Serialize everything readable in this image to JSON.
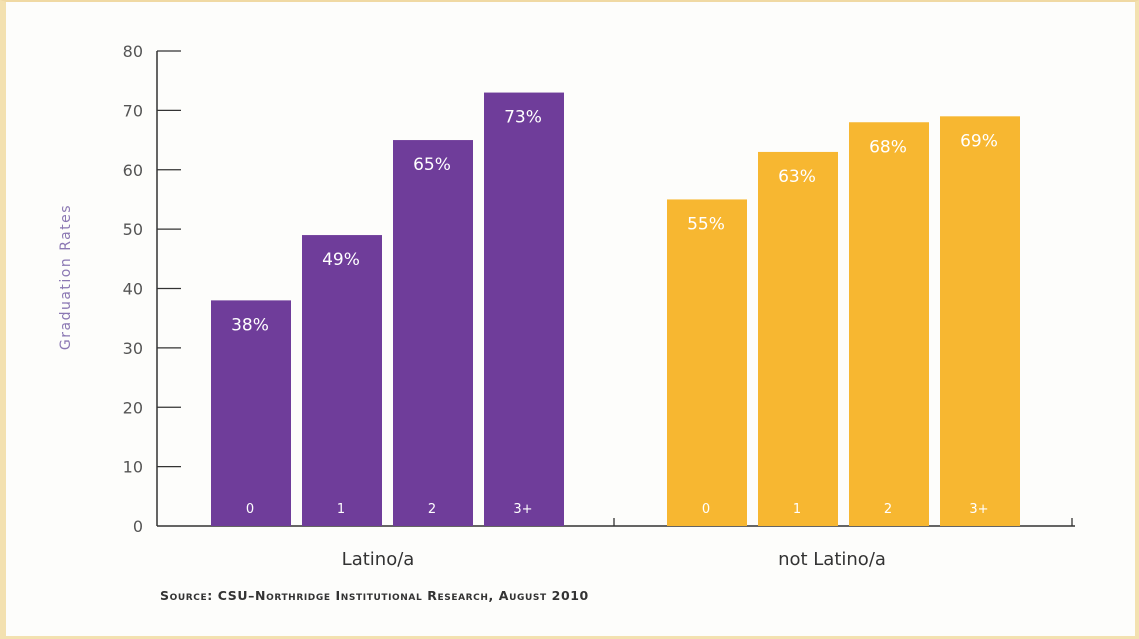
{
  "chart_data": {
    "type": "bar",
    "ylabel": "Graduation Rates",
    "ylim": [
      0,
      80
    ],
    "yticks": [
      "0",
      "10",
      "20",
      "30",
      "40",
      "50",
      "60",
      "70",
      "80"
    ],
    "groups": [
      {
        "name": "Latino/a",
        "color": "#6f3d9a",
        "categories": [
          "0",
          "1",
          "2",
          "3+"
        ],
        "values": [
          38,
          49,
          65,
          73
        ],
        "labels": [
          "38%",
          "49%",
          "65%",
          "73%"
        ]
      },
      {
        "name": "not Latino/a",
        "color": "#f7b731",
        "categories": [
          "0",
          "1",
          "2",
          "3+"
        ],
        "values": [
          55,
          63,
          68,
          69
        ],
        "labels": [
          "55%",
          "63%",
          "68%",
          "69%"
        ]
      }
    ],
    "grid": false,
    "legend": "none"
  },
  "source": "Source: CSU–Northridge Institutional Research, August 2010"
}
